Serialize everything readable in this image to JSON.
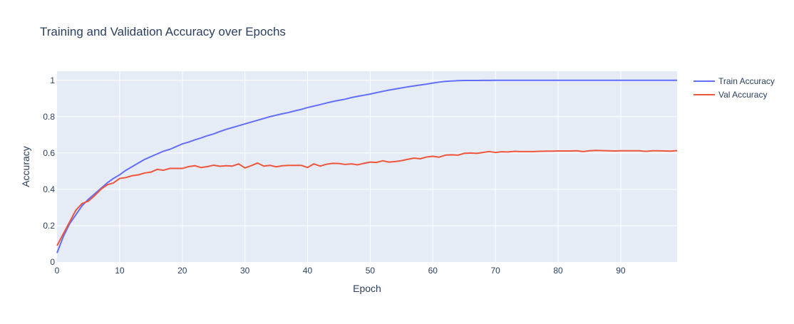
{
  "chart_data": {
    "type": "line",
    "title": "Training and Validation Accuracy over Epochs",
    "xlabel": "Epoch",
    "ylabel": "Accuracy",
    "xlim": [
      0,
      99
    ],
    "ylim": [
      0,
      1.05
    ],
    "xticks": [
      0,
      10,
      20,
      30,
      40,
      50,
      60,
      70,
      80,
      90
    ],
    "xtick_labels": [
      "0",
      "10",
      "20",
      "30",
      "40",
      "50",
      "60",
      "70",
      "80",
      "90"
    ],
    "yticks": [
      0,
      0.2,
      0.4,
      0.6,
      0.8,
      1
    ],
    "ytick_labels": [
      "0",
      "0.2",
      "0.4",
      "0.6",
      "0.8",
      "1"
    ],
    "grid": true,
    "legend_position": "top-right",
    "x": [
      0,
      1,
      2,
      3,
      4,
      5,
      6,
      7,
      8,
      9,
      10,
      11,
      12,
      13,
      14,
      15,
      16,
      17,
      18,
      19,
      20,
      21,
      22,
      23,
      24,
      25,
      26,
      27,
      28,
      29,
      30,
      31,
      32,
      33,
      34,
      35,
      36,
      37,
      38,
      39,
      40,
      41,
      42,
      43,
      44,
      45,
      46,
      47,
      48,
      49,
      50,
      51,
      52,
      53,
      54,
      55,
      56,
      57,
      58,
      59,
      60,
      61,
      62,
      63,
      64,
      65,
      66,
      67,
      68,
      69,
      70,
      71,
      72,
      73,
      74,
      75,
      76,
      77,
      78,
      79,
      80,
      81,
      82,
      83,
      84,
      85,
      86,
      87,
      88,
      89,
      90,
      91,
      92,
      93,
      94,
      95,
      96,
      97,
      98,
      99
    ],
    "series": [
      {
        "name": "Train Accuracy",
        "color": "#636efa",
        "values": [
          0.05,
          0.14,
          0.21,
          0.26,
          0.31,
          0.345,
          0.375,
          0.405,
          0.435,
          0.46,
          0.48,
          0.505,
          0.525,
          0.545,
          0.565,
          0.58,
          0.595,
          0.61,
          0.62,
          0.635,
          0.65,
          0.66,
          0.672,
          0.683,
          0.695,
          0.705,
          0.718,
          0.73,
          0.74,
          0.75,
          0.76,
          0.77,
          0.78,
          0.79,
          0.8,
          0.808,
          0.816,
          0.823,
          0.832,
          0.84,
          0.85,
          0.858,
          0.866,
          0.875,
          0.883,
          0.89,
          0.896,
          0.905,
          0.912,
          0.918,
          0.924,
          0.932,
          0.939,
          0.946,
          0.952,
          0.958,
          0.964,
          0.969,
          0.974,
          0.979,
          0.985,
          0.99,
          0.994,
          0.996,
          0.998,
          0.999,
          0.999,
          0.999,
          0.9995,
          0.9995,
          1,
          1,
          1,
          1,
          1,
          1,
          1,
          1,
          1,
          1,
          1,
          1,
          1,
          1,
          1,
          1,
          1,
          1,
          1,
          1,
          1,
          1,
          1,
          1,
          1,
          1,
          1,
          1,
          1,
          1
        ]
      },
      {
        "name": "Val Accuracy",
        "color": "#ef553b",
        "values": [
          0.09,
          0.155,
          0.22,
          0.285,
          0.322,
          0.335,
          0.365,
          0.4,
          0.425,
          0.435,
          0.46,
          0.465,
          0.475,
          0.48,
          0.49,
          0.495,
          0.51,
          0.505,
          0.515,
          0.515,
          0.515,
          0.525,
          0.53,
          0.52,
          0.525,
          0.533,
          0.527,
          0.53,
          0.528,
          0.54,
          0.518,
          0.53,
          0.545,
          0.528,
          0.532,
          0.524,
          0.53,
          0.532,
          0.532,
          0.532,
          0.52,
          0.54,
          0.528,
          0.538,
          0.543,
          0.542,
          0.537,
          0.54,
          0.535,
          0.543,
          0.55,
          0.548,
          0.557,
          0.55,
          0.553,
          0.558,
          0.565,
          0.572,
          0.568,
          0.578,
          0.582,
          0.577,
          0.588,
          0.59,
          0.588,
          0.598,
          0.6,
          0.598,
          0.603,
          0.608,
          0.603,
          0.607,
          0.606,
          0.609,
          0.608,
          0.608,
          0.608,
          0.609,
          0.61,
          0.61,
          0.611,
          0.611,
          0.611,
          0.612,
          0.608,
          0.612,
          0.614,
          0.613,
          0.612,
          0.611,
          0.612,
          0.612,
          0.612,
          0.612,
          0.609,
          0.612,
          0.612,
          0.611,
          0.61,
          0.613
        ]
      }
    ]
  }
}
